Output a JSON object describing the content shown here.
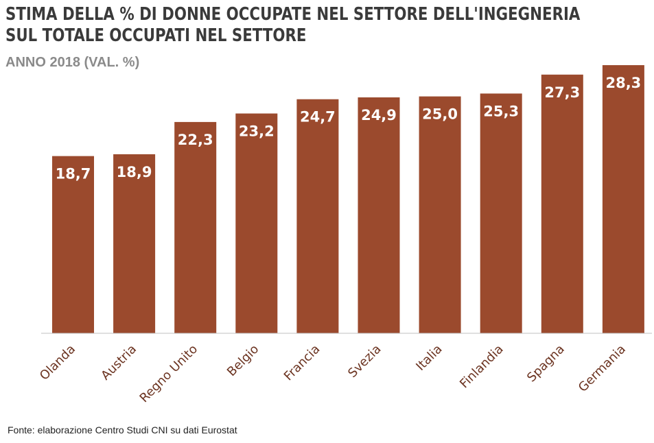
{
  "chart_data": {
    "type": "bar",
    "title": [
      "STIMA DELLA % DI DONNE OCCUPATE NEL SETTORE DELL'INGEGNERIA",
      "SUL TOTALE OCCUPATI NEL SETTORE"
    ],
    "subtitle": "ANNO 2018 (VAL. %)",
    "categories": [
      "Olanda",
      "Austria",
      "Regno Unito",
      "Belgio",
      "Francia",
      "Svezia",
      "Italia",
      "Finlandia",
      "Spagna",
      "Germania"
    ],
    "values": [
      18.7,
      18.9,
      22.3,
      23.2,
      24.7,
      24.9,
      25.0,
      25.3,
      27.3,
      28.3
    ],
    "value_labels": [
      "18,7",
      "18,9",
      "22,3",
      "23,2",
      "24,7",
      "24,9",
      "25,0",
      "25,3",
      "27,3",
      "28,3"
    ],
    "ylim": [
      0,
      28.3
    ],
    "grid": false,
    "legend": "none",
    "colors": {
      "bar": "#9b4a2d",
      "value_label": "#ffffff",
      "category_label": "#6b3320",
      "baseline": "#bfbfbf"
    }
  },
  "source": "Fonte: elaborazione Centro Studi CNI su dati Eurostat"
}
